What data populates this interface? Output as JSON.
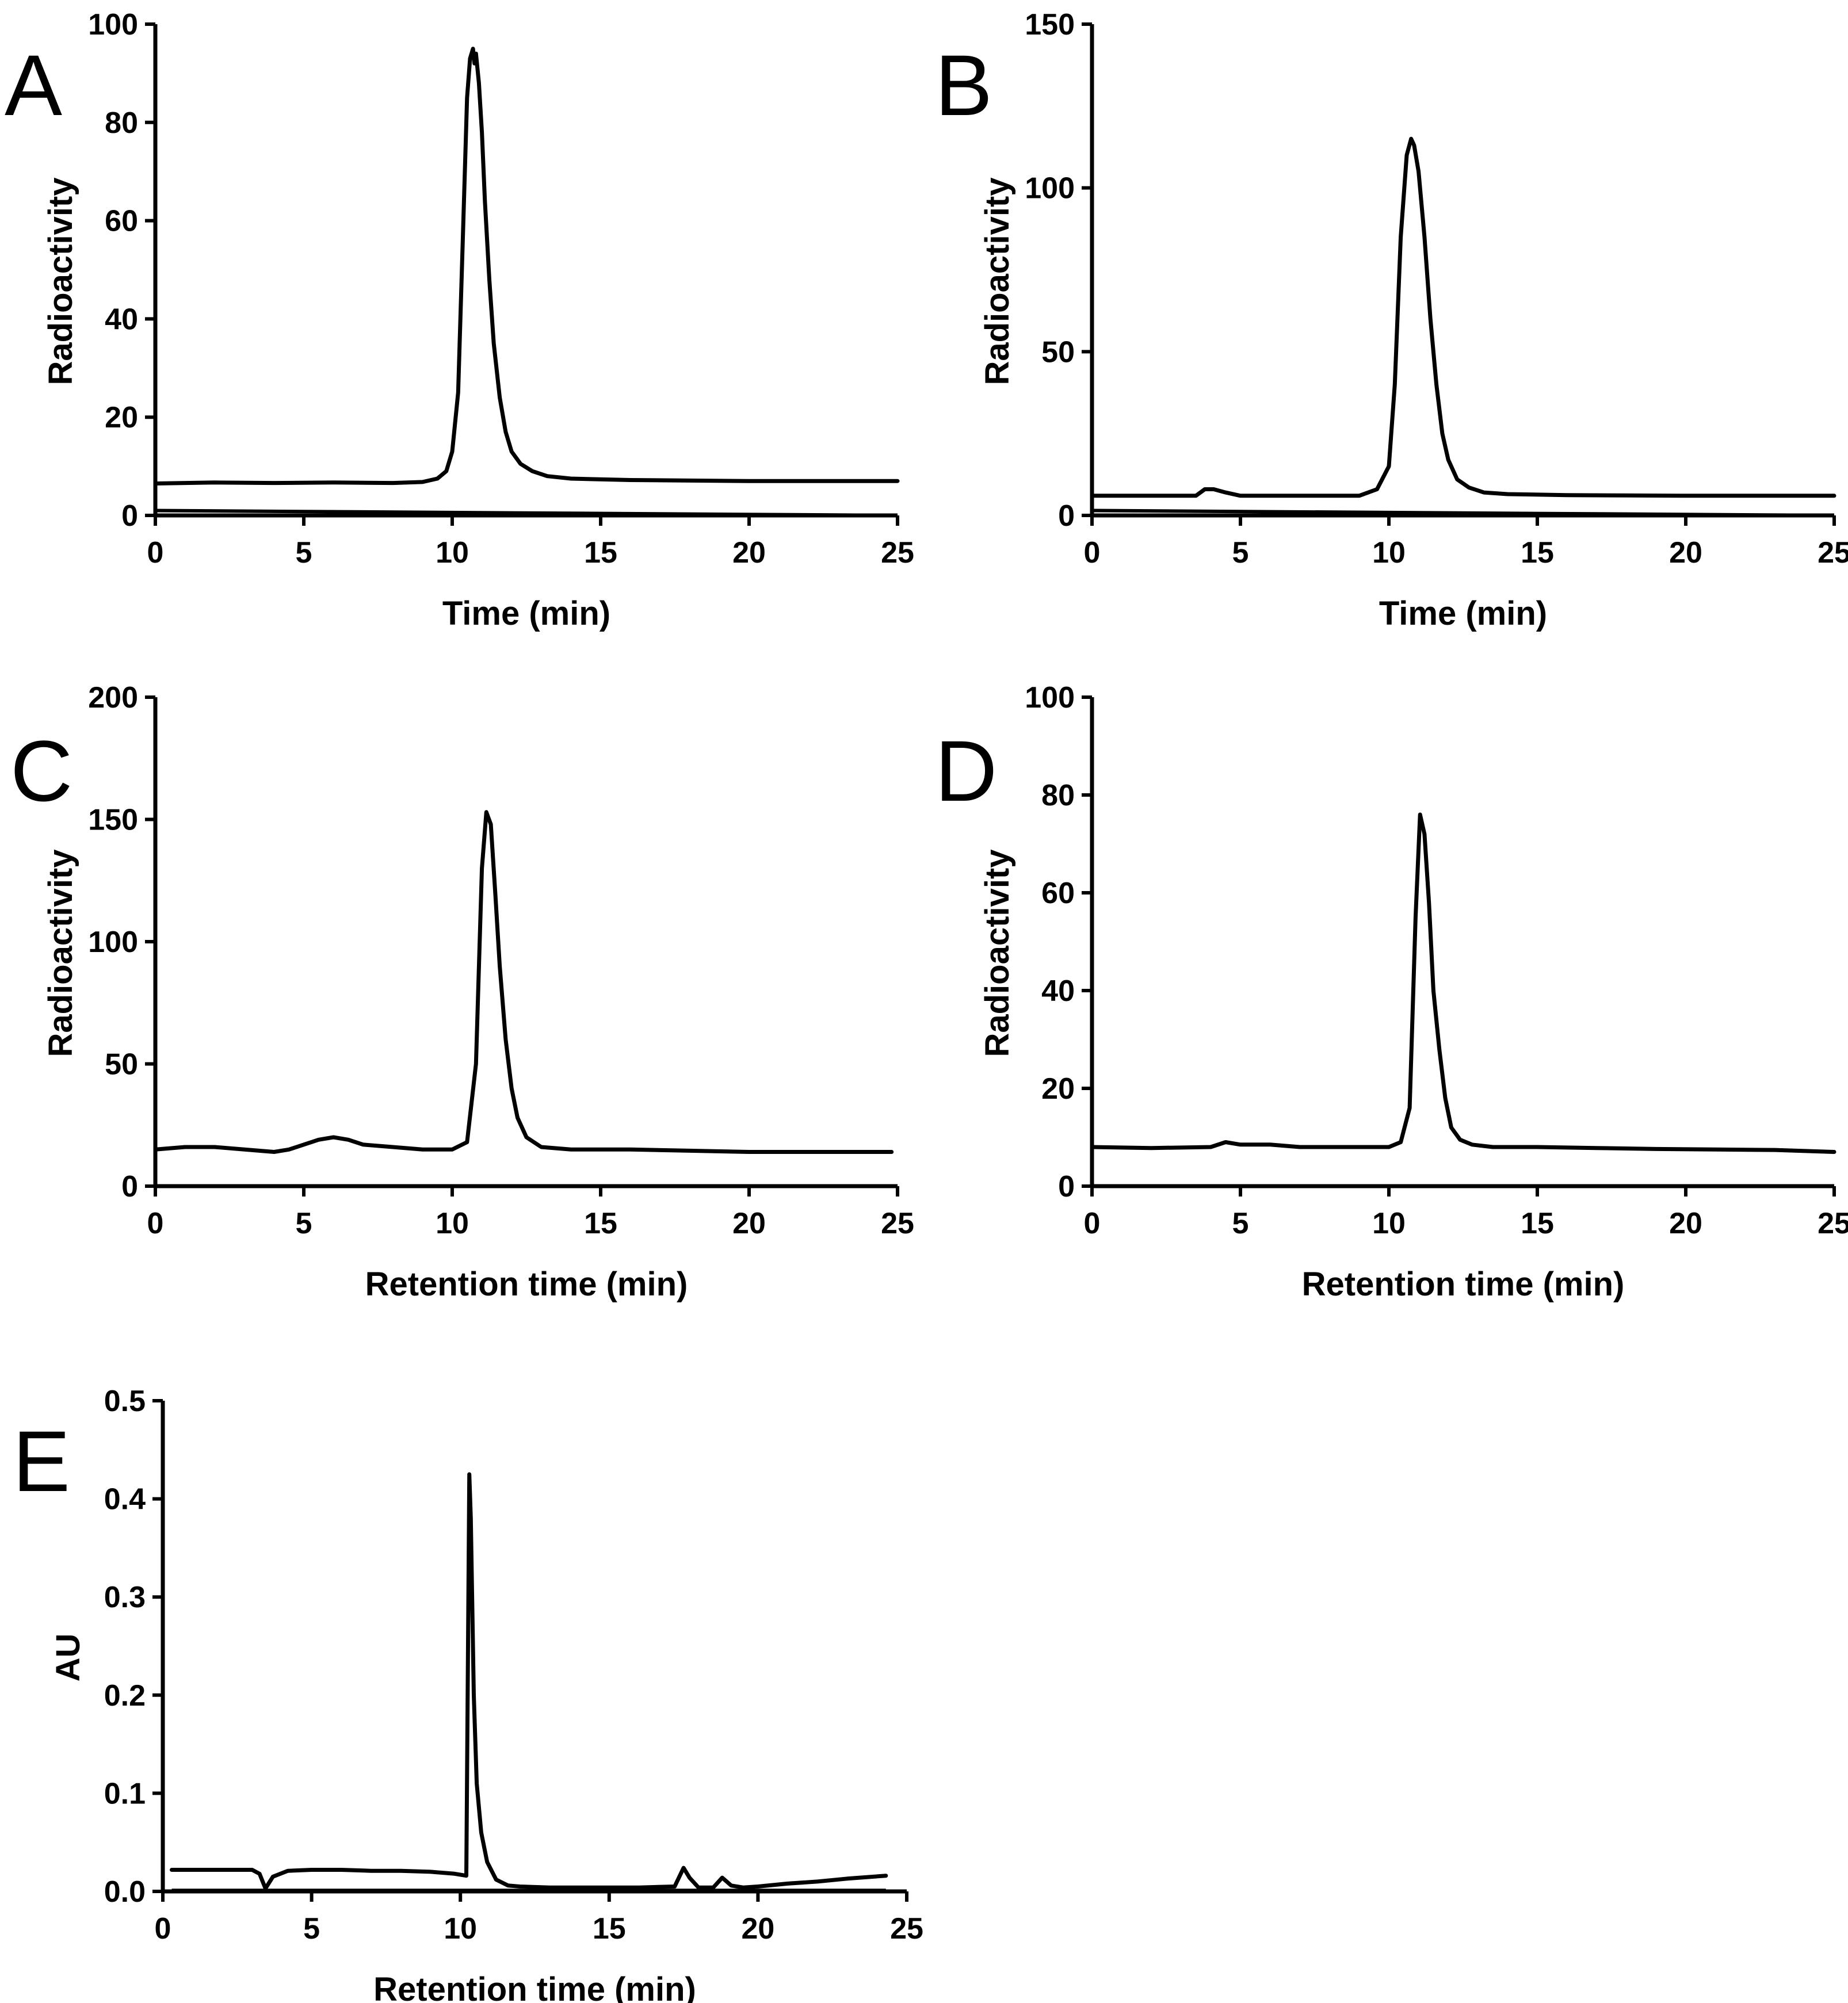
{
  "chart_data": [
    {
      "type": "line",
      "panel_label": "A",
      "xlabel": "Time (min)",
      "ylabel": "Radioactivity",
      "xlim": [
        0,
        25
      ],
      "ylim": [
        0,
        100
      ],
      "xticks": [
        0,
        5,
        10,
        15,
        20,
        25
      ],
      "yticks": [
        0,
        20,
        40,
        60,
        80,
        100
      ],
      "xtick_labels": [
        "0",
        "5",
        "10",
        "15",
        "20",
        "25"
      ],
      "ytick_labels": [
        "0",
        "20",
        "40",
        "60",
        "80",
        "100"
      ],
      "series": [
        {
          "name": "radio trace",
          "x": [
            0,
            2,
            4,
            6,
            8,
            9,
            9.5,
            9.8,
            10.0,
            10.2,
            10.35,
            10.5,
            10.6,
            10.7,
            10.75,
            10.8,
            10.9,
            11.0,
            11.1,
            11.25,
            11.4,
            11.6,
            11.8,
            12.0,
            12.3,
            12.7,
            13.2,
            14,
            16,
            18,
            20,
            22,
            24,
            25
          ],
          "y": [
            6.5,
            6.7,
            6.6,
            6.7,
            6.6,
            6.8,
            7.5,
            9,
            13,
            25,
            55,
            85,
            93,
            95,
            92,
            94,
            88,
            78,
            64,
            48,
            35,
            24,
            17,
            13,
            10.5,
            9,
            8,
            7.5,
            7.2,
            7.1,
            7.0,
            7.0,
            7.0,
            7.0
          ]
        },
        {
          "name": "lower baseline",
          "x": [
            0,
            25
          ],
          "y": [
            1,
            0
          ]
        }
      ]
    },
    {
      "type": "line",
      "panel_label": "B",
      "xlabel": "Time (min)",
      "ylabel": "Radioactivity",
      "xlim": [
        0,
        25
      ],
      "ylim": [
        0,
        150
      ],
      "xticks": [
        0,
        5,
        10,
        15,
        20,
        25
      ],
      "yticks": [
        0,
        50,
        100,
        150
      ],
      "xtick_labels": [
        "0",
        "5",
        "10",
        "15",
        "20",
        "25"
      ],
      "ytick_labels": [
        "0",
        "50",
        "100",
        "150"
      ],
      "series": [
        {
          "name": "radio trace",
          "x": [
            0,
            2,
            3.5,
            3.8,
            4.1,
            4.5,
            5,
            7,
            9,
            9.6,
            10.0,
            10.2,
            10.4,
            10.6,
            10.75,
            10.85,
            11.0,
            11.2,
            11.4,
            11.6,
            11.8,
            12.0,
            12.3,
            12.7,
            13.2,
            14,
            16,
            18,
            20,
            22,
            24,
            25
          ],
          "y": [
            6,
            6,
            6,
            8,
            8,
            7,
            6,
            6,
            6,
            8,
            15,
            40,
            85,
            110,
            115,
            113,
            105,
            85,
            60,
            40,
            25,
            17,
            11,
            8.5,
            7,
            6.5,
            6.2,
            6.1,
            6.0,
            6.0,
            6.0,
            6.0
          ]
        },
        {
          "name": "lower baseline",
          "x": [
            0,
            25
          ],
          "y": [
            1.5,
            0
          ]
        }
      ]
    },
    {
      "type": "line",
      "panel_label": "C",
      "xlabel": "Retention time (min)",
      "ylabel": "Radioactivity",
      "xlim": [
        0,
        25
      ],
      "ylim": [
        0,
        200
      ],
      "xticks": [
        0,
        5,
        10,
        15,
        20,
        25
      ],
      "yticks": [
        0,
        50,
        100,
        150,
        200
      ],
      "xtick_labels": [
        "0",
        "5",
        "10",
        "15",
        "20",
        "25"
      ],
      "ytick_labels": [
        "0",
        "50",
        "100",
        "150",
        "200"
      ],
      "series": [
        {
          "name": "radio trace",
          "x": [
            0,
            1,
            2,
            3,
            4,
            4.5,
            5,
            5.5,
            6,
            6.5,
            7,
            8,
            9,
            10,
            10.5,
            10.8,
            11.0,
            11.15,
            11.3,
            11.45,
            11.6,
            11.8,
            12.0,
            12.2,
            12.5,
            13,
            14,
            16,
            18,
            20,
            22,
            24,
            24.8
          ],
          "y": [
            15,
            16,
            16,
            15,
            14,
            15,
            17,
            19,
            20,
            19,
            17,
            16,
            15,
            15,
            18,
            50,
            130,
            153,
            148,
            120,
            90,
            60,
            40,
            28,
            20,
            16,
            15,
            15,
            14.5,
            14,
            14,
            14,
            14
          ]
        }
      ]
    },
    {
      "type": "line",
      "panel_label": "D",
      "xlabel": "Retention time (min)",
      "ylabel": "Radioactivity",
      "xlim": [
        0,
        25
      ],
      "ylim": [
        0,
        100
      ],
      "xticks": [
        0,
        5,
        10,
        15,
        20,
        25
      ],
      "yticks": [
        0,
        20,
        40,
        60,
        80,
        100
      ],
      "xtick_labels": [
        "0",
        "5",
        "10",
        "15",
        "20",
        "25"
      ],
      "ytick_labels": [
        "0",
        "20",
        "40",
        "60",
        "80",
        "100"
      ],
      "series": [
        {
          "name": "radio trace",
          "x": [
            0,
            2,
            4,
            4.5,
            5,
            6,
            7,
            8,
            9,
            10,
            10.4,
            10.7,
            10.9,
            11.05,
            11.2,
            11.35,
            11.5,
            11.7,
            11.9,
            12.1,
            12.4,
            12.8,
            13.5,
            15,
            17,
            19,
            21,
            23,
            25
          ],
          "y": [
            8,
            7.8,
            8,
            9,
            8.5,
            8.5,
            8,
            8,
            8,
            8,
            9,
            16,
            55,
            76,
            72,
            58,
            40,
            28,
            18,
            12,
            9.5,
            8.5,
            8,
            8,
            7.8,
            7.6,
            7.5,
            7.4,
            7
          ]
        }
      ]
    },
    {
      "type": "line",
      "panel_label": "E",
      "xlabel": "Retention time (min)",
      "ylabel": "AU",
      "xlim": [
        0,
        25
      ],
      "ylim": [
        0,
        0.5
      ],
      "xticks": [
        0,
        5,
        10,
        15,
        20,
        25
      ],
      "yticks": [
        0,
        0.1,
        0.2,
        0.3,
        0.4,
        0.5
      ],
      "xtick_labels": [
        "0",
        "5",
        "10",
        "15",
        "20",
        "25"
      ],
      "ytick_labels": [
        "0.0",
        "0.1",
        "0.2",
        "0.3",
        "0.4",
        "0.5"
      ],
      "series": [
        {
          "name": "UV trace",
          "x": [
            0.3,
            3.0,
            3.25,
            3.45,
            3.7,
            4.2,
            5,
            6,
            7,
            8,
            9,
            9.8,
            10.2,
            10.3,
            10.35,
            10.45,
            10.55,
            10.7,
            10.9,
            11.2,
            11.6,
            12,
            13,
            14,
            15,
            16,
            17.2,
            17.5,
            17.7,
            18.0,
            18.5,
            18.8,
            19.1,
            19.5,
            20,
            21,
            22,
            23,
            24.3
          ],
          "y": [
            0.022,
            0.022,
            0.018,
            0.003,
            0.015,
            0.021,
            0.022,
            0.022,
            0.021,
            0.021,
            0.02,
            0.018,
            0.016,
            0.425,
            0.38,
            0.2,
            0.11,
            0.06,
            0.03,
            0.012,
            0.006,
            0.005,
            0.004,
            0.004,
            0.004,
            0.004,
            0.005,
            0.024,
            0.014,
            0.004,
            0.004,
            0.014,
            0.006,
            0.004,
            0.005,
            0.008,
            0.01,
            0.013,
            0.016
          ]
        },
        {
          "name": "lower baseline",
          "x": [
            0.3,
            24.3
          ],
          "y": [
            0.001,
            0.001
          ]
        }
      ]
    }
  ]
}
